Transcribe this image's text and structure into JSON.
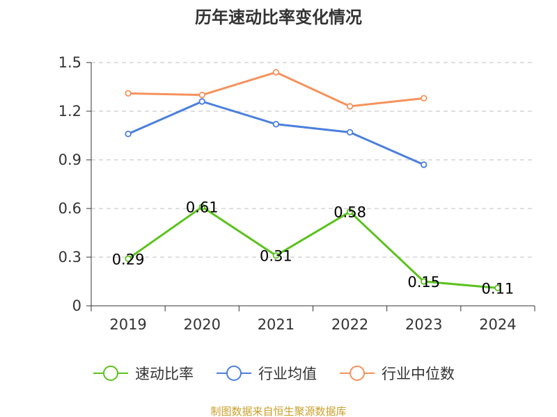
{
  "chart_data": {
    "type": "line",
    "title": "历年速动比率变化情况",
    "categories": [
      "2019",
      "2020",
      "2021",
      "2022",
      "2023",
      "2024"
    ],
    "ylim": [
      0,
      1.5
    ],
    "yticks": [
      "0",
      "0.3",
      "0.6",
      "0.9",
      "1.2",
      "1.5"
    ],
    "grid": true,
    "legend_position": "bottom",
    "series": [
      {
        "name": "速动比率",
        "color": "#5bc21d",
        "values": [
          0.29,
          0.61,
          0.31,
          0.58,
          0.15,
          0.11
        ],
        "labels": [
          "0.29",
          "0.61",
          "0.31",
          "0.58",
          "0.15",
          "0.11"
        ]
      },
      {
        "name": "行业均值",
        "color": "#4a7fdd",
        "values": [
          1.06,
          1.26,
          1.12,
          1.07,
          0.87,
          null
        ]
      },
      {
        "name": "行业中位数",
        "color": "#f5925c",
        "values": [
          1.31,
          1.3,
          1.44,
          1.23,
          1.28,
          null
        ]
      }
    ]
  },
  "source": {
    "text": "制图数据来自恒生聚源数据库",
    "color": "#c8a02c"
  }
}
